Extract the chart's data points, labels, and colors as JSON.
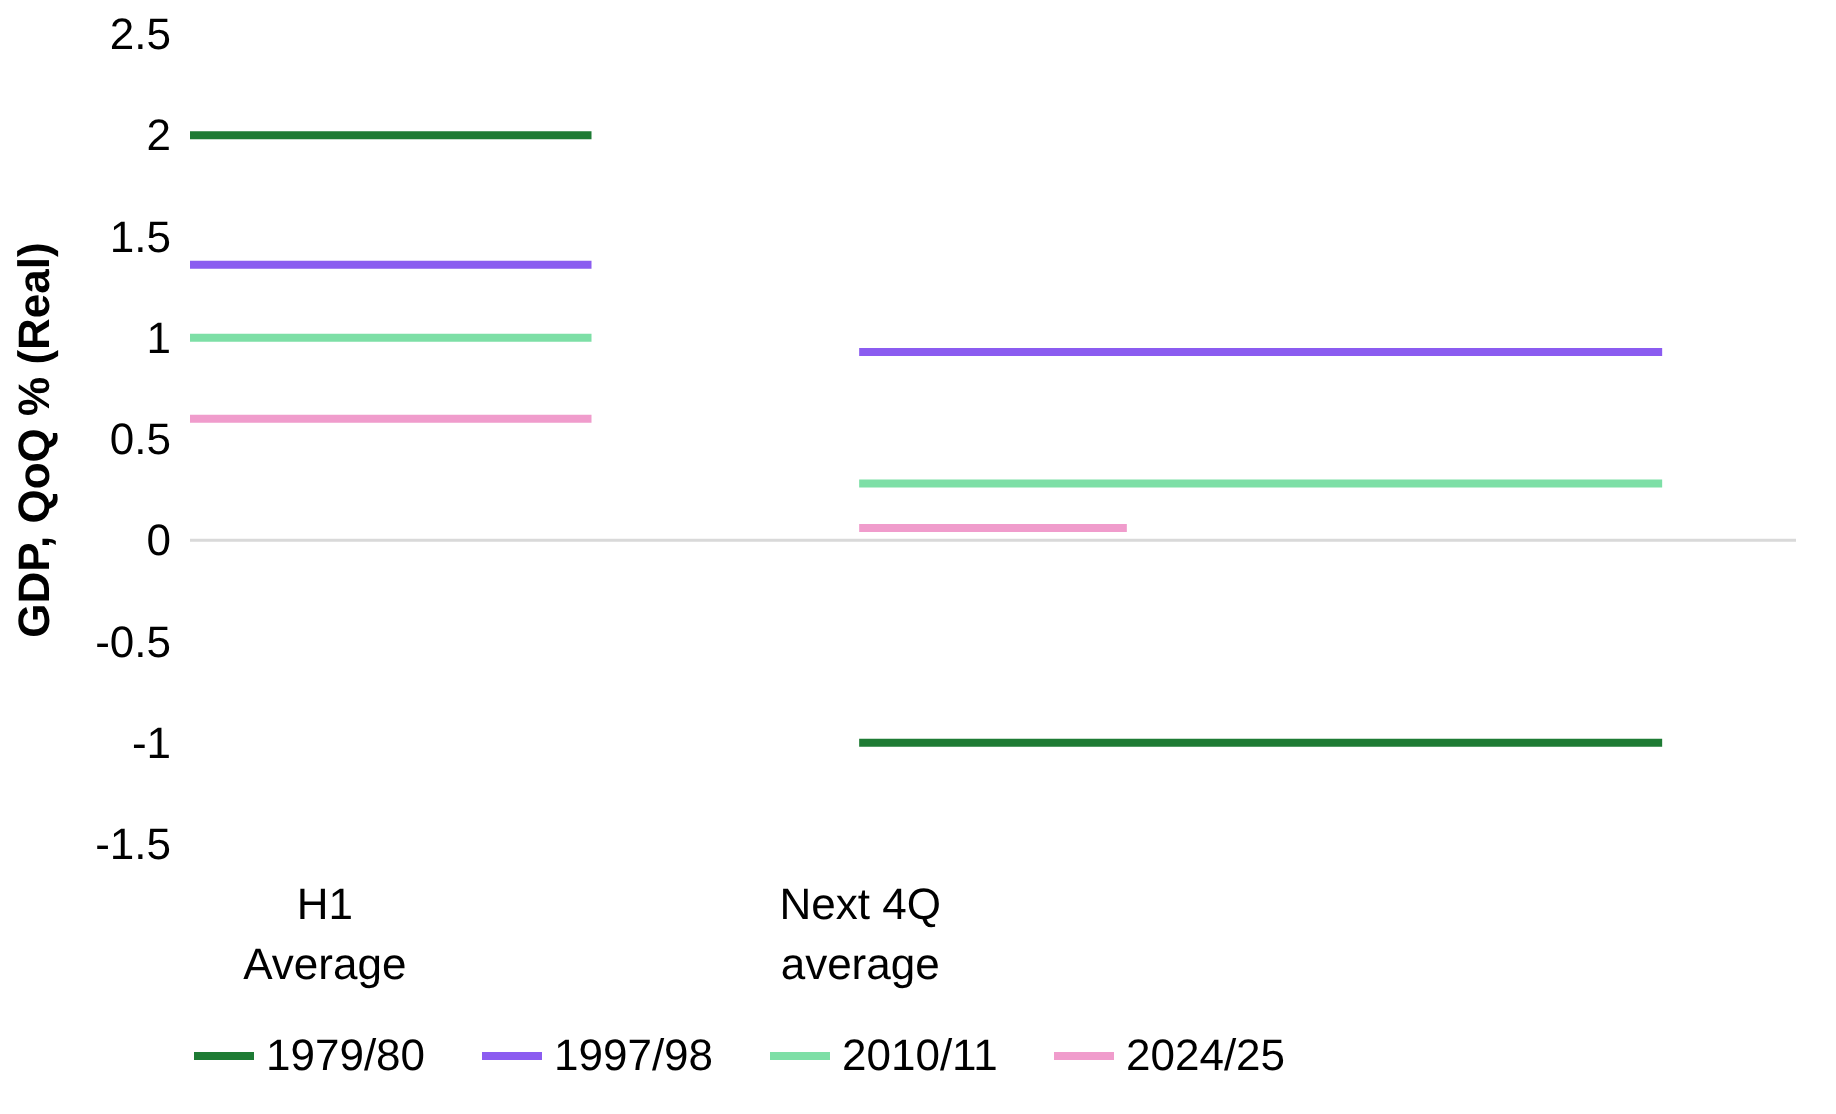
{
  "chart_data": {
    "type": "line",
    "ylabel": "GDP, QoQ % (Real)",
    "categories": [
      null,
      "H1 Average",
      null,
      null,
      null,
      "Next 4Q average",
      null,
      null,
      null,
      null,
      null,
      null,
      null
    ],
    "series": [
      {
        "name": "1979/80",
        "color": "#1e7b34",
        "values": [
          2,
          2,
          2,
          2,
          null,
          -1,
          -1,
          -1,
          -1,
          -1,
          -1,
          -1,
          null
        ]
      },
      {
        "name": "1997/98",
        "color": "#8b5cf0",
        "values": [
          1.36,
          1.36,
          1.36,
          1.36,
          null,
          0.93,
          0.93,
          0.93,
          0.93,
          0.93,
          0.93,
          0.93,
          null
        ]
      },
      {
        "name": "2010/11",
        "color": "#7ddfa6",
        "values": [
          1.0,
          1.0,
          1.0,
          1.0,
          null,
          0.28,
          0.28,
          0.28,
          0.28,
          0.28,
          0.28,
          0.28,
          null
        ]
      },
      {
        "name": "2024/25",
        "color": "#f09ccc",
        "values": [
          0.6,
          0.6,
          0.6,
          0.6,
          null,
          0.06,
          0.06,
          0.06,
          null,
          null,
          null,
          null,
          null
        ]
      }
    ],
    "ylim": [
      -1.5,
      2.5
    ],
    "yticks": [
      -1.5,
      -1,
      -0.5,
      0,
      0.5,
      1,
      1.5,
      2,
      2.5
    ],
    "ref_lines": [
      {
        "axis": "y",
        "value": 0,
        "color": "#d9d9d9"
      }
    ],
    "grid": false,
    "legend": "bottom",
    "marker": "none",
    "line_style": "solid"
  }
}
